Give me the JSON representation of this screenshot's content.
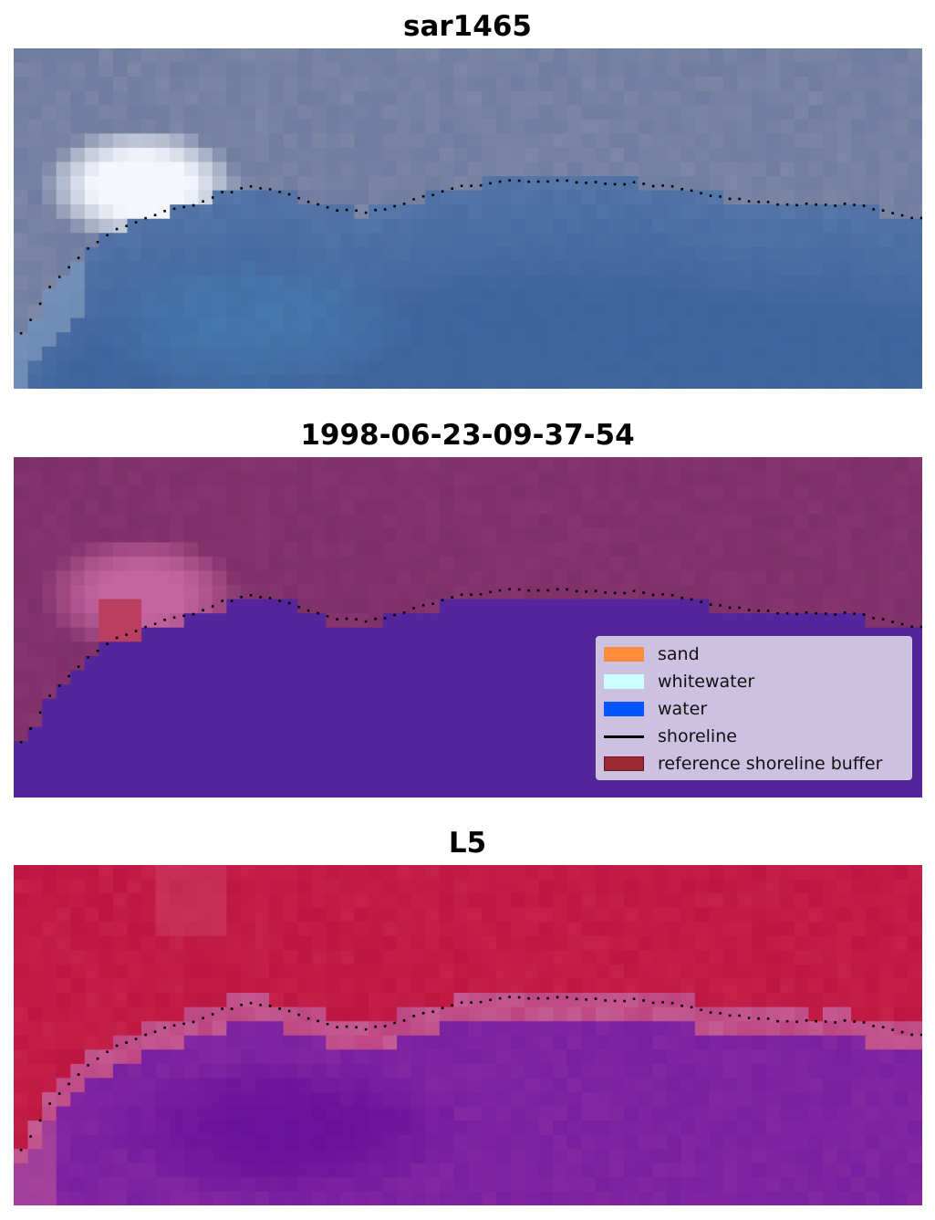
{
  "panels": [
    {
      "id": "top",
      "title": "sar1465",
      "style": "rgb"
    },
    {
      "id": "mid",
      "title": "1998-06-23-09-37-54",
      "style": "classified"
    },
    {
      "id": "bot",
      "title": "L5",
      "style": "ndwi"
    }
  ],
  "legend": {
    "items": [
      {
        "label": "sand",
        "color": "#ff8c3a",
        "kind": "patch"
      },
      {
        "label": "whitewater",
        "color": "#ccffff",
        "kind": "patch"
      },
      {
        "label": "water",
        "color": "#0055ff",
        "kind": "patch"
      },
      {
        "label": "shoreline",
        "color": "#000000",
        "kind": "line"
      },
      {
        "label": "reference shoreline buffer",
        "color": "#9b2a32",
        "kind": "patch"
      }
    ]
  },
  "colors": {
    "land_classified": "#86356f",
    "water_classified": "#55259b",
    "ndwi_land": "#bd1a47",
    "ndwi_water": "#7a1fa0",
    "shoreline": "#000000"
  }
}
